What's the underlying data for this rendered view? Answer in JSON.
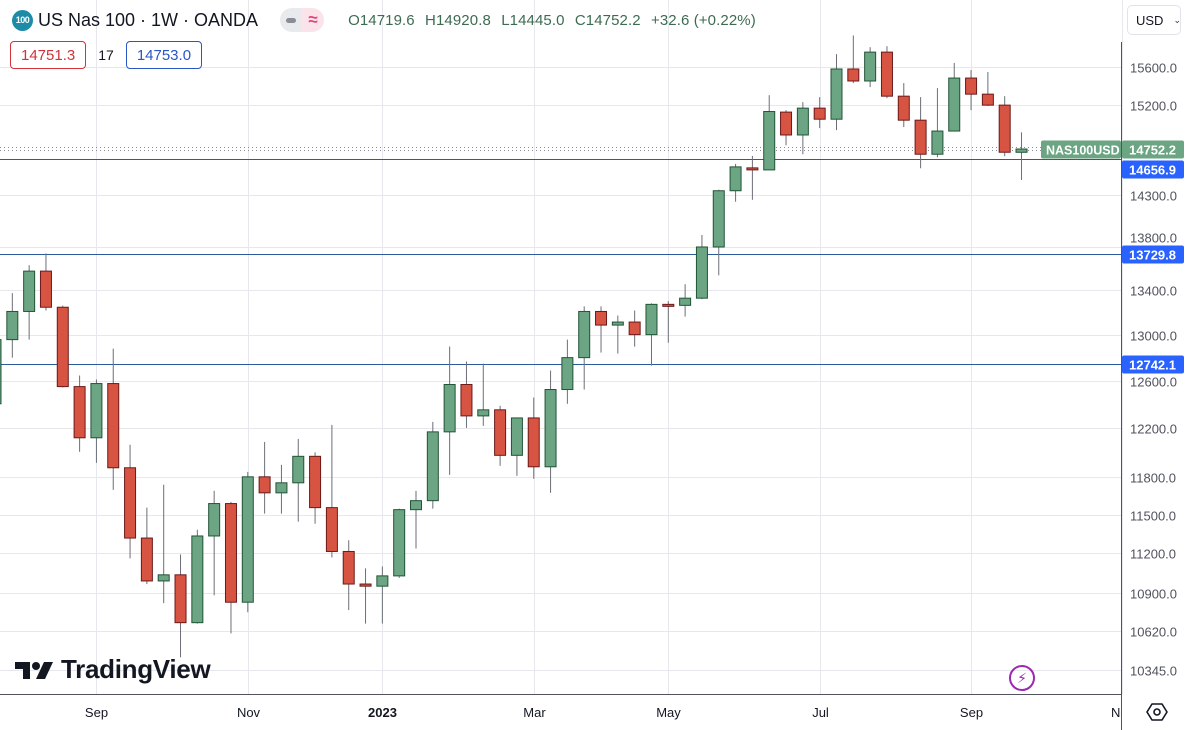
{
  "header": {
    "symbol_icon": "100",
    "title": "US Nas 100 · 1W · OANDA",
    "ohlc": {
      "open": "O14719.6",
      "high": "H14920.8",
      "low": "L14445.0",
      "close": "C14752.2",
      "change": "+32.6 (+0.22%)"
    },
    "bid": "14751.3",
    "spread": "17",
    "ask": "14753.0"
  },
  "currency_button": "USD",
  "branding": "TradingView",
  "colors": {
    "up": "#6ba583",
    "up_border": "#225437",
    "down": "#d75442",
    "down_border": "#6b1a1a",
    "level": "#2d5a9a",
    "level_label": "#2962ff",
    "last": "#6ba583"
  },
  "chart_data": {
    "type": "candlestick",
    "title": "US Nas 100 · 1W · OANDA",
    "interval": "1W",
    "first_bar_week": "2022-07-25",
    "scale": "log",
    "ylim": [
      10200,
      15950
    ],
    "y_ticks": [
      "15600.0",
      "15200.0",
      "14300.0",
      "13800.0",
      "13400.0",
      "13000.0",
      "12600.0",
      "12200.0",
      "11800.0",
      "11500.0",
      "11200.0",
      "10900.0",
      "10620.0",
      "10345.0"
    ],
    "x_ticks": [
      {
        "label": "Sep",
        "bar": 6,
        "bold": false
      },
      {
        "label": "Nov",
        "bar": 15,
        "bold": false
      },
      {
        "label": "2023",
        "bar": 23,
        "bold": true
      },
      {
        "label": "Mar",
        "bar": 32,
        "bold": false
      },
      {
        "label": "May",
        "bar": 40,
        "bold": false
      },
      {
        "label": "Jul",
        "bar": 49,
        "bold": false
      },
      {
        "label": "Sep",
        "bar": 58,
        "bold": false
      },
      {
        "label": "Nov",
        "bar": 67,
        "bold": false
      }
    ],
    "ohlc_fields": [
      "open",
      "high",
      "low",
      "close"
    ],
    "candles": [
      [
        12402,
        13035,
        12342,
        12956
      ],
      [
        12956,
        13373,
        12798,
        13207
      ],
      [
        13207,
        13630,
        12956,
        13575
      ],
      [
        13575,
        13740,
        13216,
        13245
      ],
      [
        13245,
        13260,
        12540,
        12548
      ],
      [
        12548,
        12643,
        12003,
        12118
      ],
      [
        12118,
        12609,
        11913,
        12574
      ],
      [
        12574,
        12877,
        11696,
        11873
      ],
      [
        11873,
        12061,
        11162,
        11318
      ],
      [
        11318,
        11555,
        10969,
        10992
      ],
      [
        10992,
        11737,
        10827,
        11038
      ],
      [
        11038,
        11192,
        10435,
        10684
      ],
      [
        10684,
        11382,
        10677,
        11334
      ],
      [
        11334,
        11688,
        10885,
        11587
      ],
      [
        11587,
        11600,
        10606,
        10834
      ],
      [
        10834,
        11840,
        10760,
        11800
      ],
      [
        11800,
        12084,
        11508,
        11672
      ],
      [
        11672,
        11897,
        11508,
        11752
      ],
      [
        11752,
        12109,
        11445,
        11966
      ],
      [
        11966,
        11999,
        11429,
        11555
      ],
      [
        11555,
        12225,
        11169,
        11215
      ],
      [
        11215,
        11301,
        10776,
        10969
      ],
      [
        10969,
        11087,
        10677,
        10953
      ],
      [
        10953,
        11101,
        10677,
        11030
      ],
      [
        11030,
        11547,
        11015,
        11539
      ],
      [
        11539,
        11688,
        11238,
        11610
      ],
      [
        11610,
        12250,
        11547,
        12167
      ],
      [
        12167,
        12895,
        11816,
        12566
      ],
      [
        12566,
        12764,
        12200,
        12300
      ],
      [
        12300,
        12746,
        12217,
        12351
      ],
      [
        12351,
        12385,
        11889,
        11974
      ],
      [
        11974,
        12283,
        11808,
        12283
      ],
      [
        12283,
        12455,
        11784,
        11881
      ],
      [
        11881,
        12686,
        11672,
        12523
      ],
      [
        12523,
        12956,
        12402,
        12798
      ],
      [
        12798,
        13253,
        12523,
        13207
      ],
      [
        13207,
        13253,
        12842,
        13085
      ],
      [
        13085,
        13170,
        12833,
        13112
      ],
      [
        13112,
        13216,
        12894,
        13000
      ],
      [
        13000,
        13280,
        12729,
        13271
      ],
      [
        13271,
        13300,
        12929,
        13253
      ],
      [
        13262,
        13455,
        13161,
        13327
      ],
      [
        13327,
        13913,
        13318,
        13800
      ],
      [
        13800,
        14349,
        13536,
        14339
      ],
      [
        14339,
        14604,
        14232,
        14574
      ],
      [
        14564,
        14683,
        14251,
        14544
      ],
      [
        14544,
        15303,
        14544,
        15134
      ],
      [
        15128,
        15148,
        14790,
        14894
      ],
      [
        14894,
        15231,
        14700,
        15169
      ],
      [
        15169,
        15283,
        14964,
        15055
      ],
      [
        15055,
        15738,
        14944,
        15579
      ],
      [
        15579,
        15939,
        15430,
        15452
      ],
      [
        15452,
        15812,
        15388,
        15759
      ],
      [
        15759,
        15823,
        15272,
        15293
      ],
      [
        15293,
        15430,
        14974,
        15045
      ],
      [
        15045,
        15283,
        14560,
        14700
      ],
      [
        14700,
        15377,
        14670,
        14934
      ],
      [
        14934,
        15643,
        14934,
        15483
      ],
      [
        15483,
        15568,
        15148,
        15314
      ],
      [
        15314,
        15547,
        15190,
        15200
      ],
      [
        15200,
        15293,
        14680,
        14720
      ],
      [
        14719.6,
        14920.8,
        14445.0,
        14752.2
      ]
    ],
    "horizontal_levels": [
      {
        "label": "14656.9",
        "value": 14656.9
      },
      {
        "label": "13729.8",
        "value": 13729.8
      },
      {
        "label": "12742.1",
        "value": 12742.1
      }
    ],
    "last_price": {
      "symbol": "NAS100USD",
      "label": "14752.2",
      "value": 14752.2
    }
  }
}
